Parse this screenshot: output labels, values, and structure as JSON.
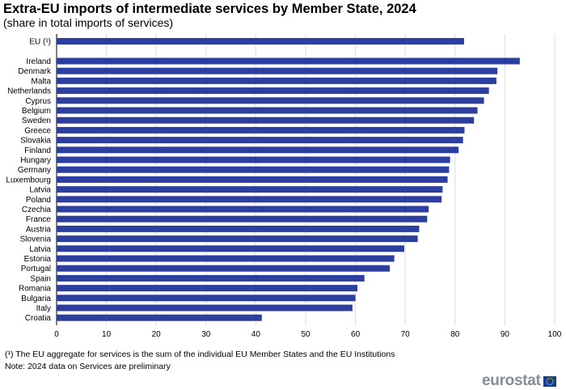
{
  "title": "Extra-EU imports of intermediate services by Member State, 2024",
  "subtitle": "(share in total imports of services)",
  "footnotes": [
    "(¹) The EU aggregate for services is the sum of the individual EU Member States and the EU Institutions",
    "Note: 2024 data on Services are preliminary"
  ],
  "brand": "eurostat",
  "colors": {
    "bar": "#2d3f9e",
    "grid": "#dddddd",
    "axis": "#000000"
  },
  "chart_data": {
    "type": "bar",
    "orientation": "horizontal",
    "title": "Extra-EU imports of intermediate services by Member State, 2024",
    "subtitle": "(share in total imports of services)",
    "xlabel": "",
    "ylabel": "",
    "xlim": [
      0,
      100
    ],
    "x_ticks": [
      0,
      10,
      20,
      30,
      40,
      50,
      60,
      70,
      80,
      90,
      100
    ],
    "grid": true,
    "categories": [
      "EU (¹)",
      "Ireland",
      "Denmark",
      "Malta",
      "Netherlands",
      "Cyprus",
      "Belgium",
      "Sweden",
      "Greece",
      "Slovakia",
      "Finland",
      "Hungary",
      "Germany",
      "Luxembourg",
      "Latvia",
      "Poland",
      "Czechia",
      "France",
      "Austria",
      "Slovenia",
      "Latvia",
      "Estonia",
      "Portugal",
      "Spain",
      "Romania",
      "Bulgaria",
      "Italy",
      "Croatia"
    ],
    "values": [
      81.8,
      93.0,
      88.5,
      88.3,
      86.8,
      85.8,
      84.5,
      83.8,
      81.9,
      81.6,
      80.7,
      79.0,
      78.8,
      78.5,
      77.5,
      77.3,
      74.7,
      74.4,
      72.8,
      72.5,
      69.8,
      67.8,
      66.9,
      61.8,
      60.4,
      60.0,
      59.4,
      41.2
    ]
  }
}
